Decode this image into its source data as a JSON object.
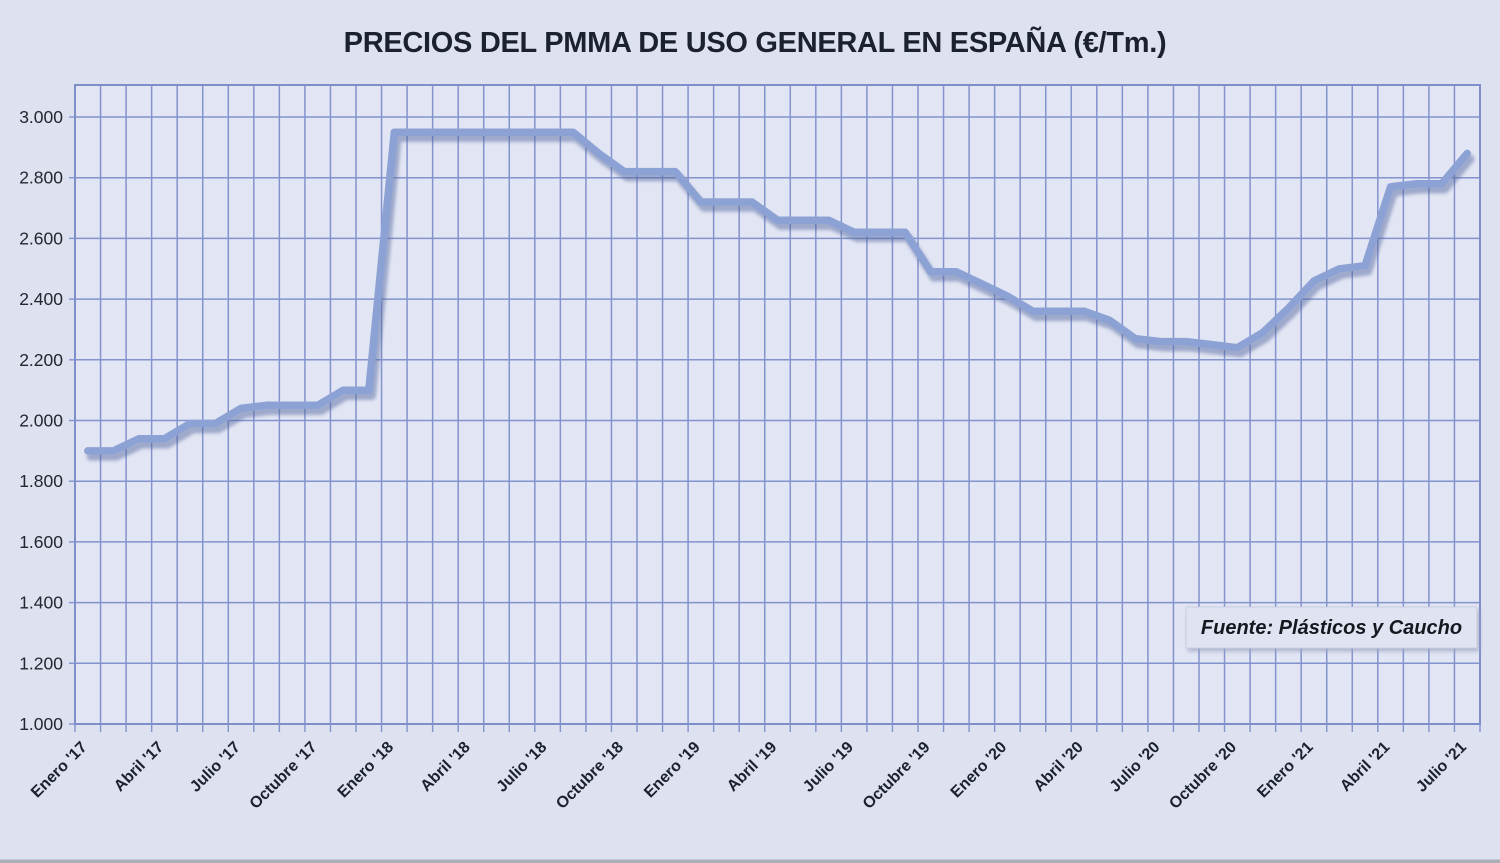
{
  "title": "PRECIOS DEL PMMA DE USO GENERAL EN ESPAÑA (€/Tm.)",
  "source_label": "Fuente: Plásticos y Caucho",
  "colors": {
    "background": "#dde1f0",
    "plot_background": "#e2e5f3",
    "gridline": "#8393cd",
    "frame": "#7d8ec9",
    "line": "#8da2d4",
    "line_shadow": "#53689f",
    "text": "#1c2130",
    "source_box_bg": "#e0e4f2",
    "source_box_border": "#c7cfe3",
    "window_edge": "#aaaeb9"
  },
  "chart_data": {
    "type": "line",
    "title": "PRECIOS DEL PMMA DE USO GENERAL EN ESPAÑA (€/Tm.)",
    "unit": "€/Tm.",
    "categories": [
      "Enero '17",
      "Febrero '17",
      "Marzo '17",
      "Abril '17",
      "Mayo '17",
      "Junio '17",
      "Julio '17",
      "Agosto '17",
      "Septiembre '17",
      "Octubre '17",
      "Noviembre '17",
      "Diciembre '17",
      "Enero '18",
      "Febrero '18",
      "Marzo '18",
      "Abril '18",
      "Mayo '18",
      "Junio '18",
      "Julio '18",
      "Agosto '18",
      "Septiembre '18",
      "Octubre '18",
      "Noviembre '18",
      "Diciembre '18",
      "Enero '19",
      "Febrero '19",
      "Marzo '19",
      "Abril '19",
      "Mayo '19",
      "Junio '19",
      "Julio '19",
      "Agosto '19",
      "Septiembre '19",
      "Octubre '19",
      "Noviembre '19",
      "Diciembre '19",
      "Enero '20",
      "Febrero '20",
      "Marzo '20",
      "Abril '20",
      "Mayo '20",
      "Junio '20",
      "Julio '20",
      "Agosto '20",
      "Septiembre '20",
      "Octubre '20",
      "Noviembre '20",
      "Diciembre '20",
      "Enero '21",
      "Febrero '21",
      "Marzo '21",
      "Abril '21",
      "Mayo '21",
      "Junio '21",
      "Julio '21"
    ],
    "values": [
      1900,
      1900,
      1940,
      1940,
      1990,
      1990,
      2040,
      2050,
      2050,
      2050,
      2100,
      2100,
      2950,
      2950,
      2950,
      2950,
      2950,
      2950,
      2950,
      2950,
      2880,
      2820,
      2820,
      2820,
      2720,
      2720,
      2720,
      2660,
      2660,
      2660,
      2620,
      2620,
      2620,
      2490,
      2490,
      2450,
      2410,
      2360,
      2360,
      2360,
      2330,
      2270,
      2260,
      2260,
      2250,
      2240,
      2290,
      2370,
      2460,
      2500,
      2510,
      2770,
      2780,
      2780,
      2880
    ],
    "x_tick_labels": [
      "Enero '17",
      "Abril '17",
      "Julio '17",
      "Octubre '17",
      "Enero '18",
      "Abril '18",
      "Julio '18",
      "Octubre '18",
      "Enero '19",
      "Abril '19",
      "Julio '19",
      "Octubre '19",
      "Enero '20",
      "Abril '20",
      "Julio '20",
      "Octubre '20",
      "Enero '21",
      "Abril '21",
      "Julio '21"
    ],
    "x_tick_every": 3,
    "y_tick_labels": [
      "1.000",
      "1.200",
      "1.400",
      "1.600",
      "1.800",
      "2.000",
      "2.200",
      "2.400",
      "2.600",
      "2.800",
      "3.000"
    ],
    "y_tick_values": [
      1000,
      1200,
      1400,
      1600,
      1800,
      2000,
      2200,
      2400,
      2600,
      2800,
      3000
    ],
    "ylim": [
      1000,
      3105
    ],
    "grid": "monthly vertical + 200-step horizontal",
    "legend_position": "none"
  }
}
